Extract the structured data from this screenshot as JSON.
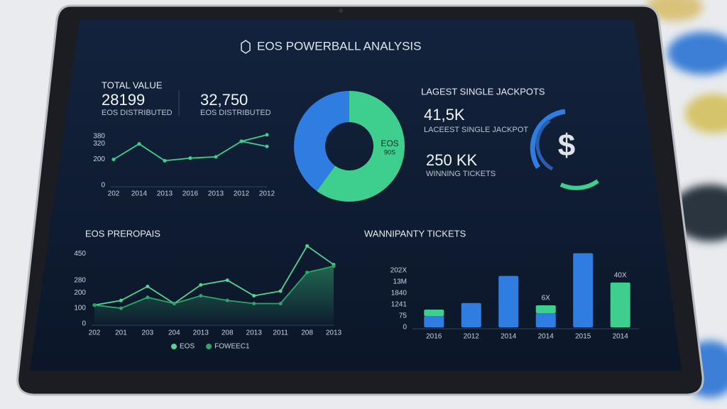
{
  "title": "EOS POWERBALL ANALYSIS",
  "kpis": {
    "label": "TOTAL VALUE",
    "items": [
      {
        "value": "28199",
        "caption": "EOS DISTRIBUTED"
      },
      {
        "value": "32,750",
        "caption": "EOS DISTRIBUTED"
      }
    ]
  },
  "jackpot": {
    "heading": "LAGEST SINGLE JACKPOTS",
    "items": [
      {
        "value": "41,5K",
        "caption": "LACEEST SINGLE JACKPOT"
      },
      {
        "value": "250 KK",
        "caption": "WINNING TICKETS"
      }
    ],
    "icon": "$"
  },
  "chart_data": [
    {
      "type": "line",
      "categories": [
        "202",
        "2014",
        "2013",
        "2016",
        "2013",
        "2012",
        "2012"
      ],
      "series": [
        {
          "color": "#3ecf8e",
          "values": [
            200,
            320,
            190,
            210,
            220,
            340,
            390
          ]
        },
        {
          "color": "#3ecf8e",
          "values": [
            null,
            null,
            null,
            null,
            null,
            340,
            300
          ]
        }
      ],
      "ylim": [
        0,
        400
      ],
      "yticks": [
        0,
        200,
        320,
        380
      ],
      "grid": false
    },
    {
      "type": "pie",
      "categories": [
        "EOS",
        "90S"
      ],
      "values": [
        40,
        60
      ],
      "colors": [
        "#2f7de1",
        "#3ecf8e"
      ],
      "hole": true
    },
    {
      "type": "line",
      "title": "EOS PREROPAIS",
      "categories": [
        "202",
        "201",
        "203",
        "204",
        "2013",
        "208",
        "2013",
        "2011",
        "208",
        "2013"
      ],
      "series": [
        {
          "name": "EOS",
          "color": "#52d58f",
          "values": [
            120,
            150,
            240,
            130,
            250,
            280,
            180,
            210,
            500,
            380
          ]
        },
        {
          "name": "FOWEEC1",
          "color": "#2fa56a",
          "values": [
            120,
            100,
            170,
            130,
            180,
            150,
            130,
            130,
            330,
            370
          ],
          "area": true
        }
      ],
      "ylim": [
        0,
        520
      ],
      "yticks": [
        0,
        100,
        200,
        280,
        450
      ],
      "grid": false,
      "legend": "bottom"
    },
    {
      "type": "bar",
      "title": "WANNIPANTY TICKETS",
      "stacked": true,
      "categories": [
        "2016",
        "2012",
        "2014",
        "2014",
        "2015",
        "2014"
      ],
      "series": [
        {
          "color": "#2f7de1",
          "values": [
            75,
            160,
            338,
            93,
            488,
            null
          ]
        },
        {
          "color": "#3ecf8e",
          "values": [
            42,
            null,
            null,
            52,
            null,
            295
          ]
        }
      ],
      "ylim": [
        0,
        500
      ],
      "yticks": [
        0,
        75,
        {
          "value": 150,
          "label": "1241"
        },
        {
          "value": 225,
          "label": "1840"
        },
        {
          "value": 300,
          "label": "13M"
        },
        {
          "value": 375,
          "label": "202X"
        }
      ],
      "annotations": [
        "6X",
        "40X"
      ],
      "grid": false
    }
  ]
}
